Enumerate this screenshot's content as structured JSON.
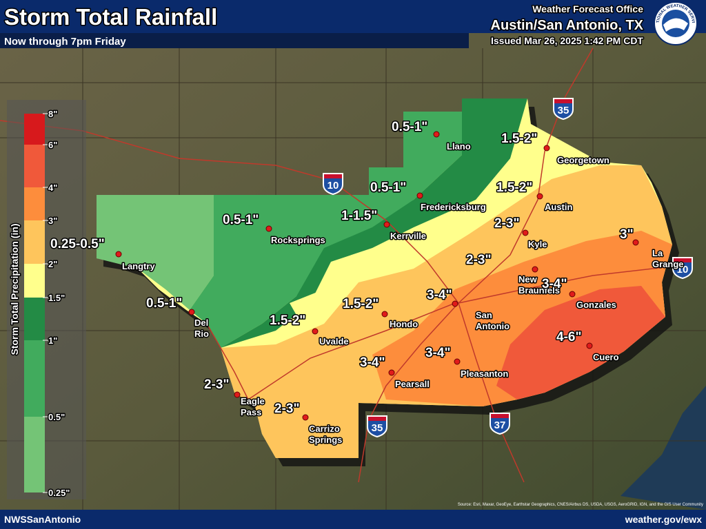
{
  "header": {
    "title": "Storm Total Rainfall",
    "subtitle": "Now through 7pm Friday",
    "office_label": "Weather Forecast Office",
    "office": "Austin/San Antonio, TX",
    "issued": "Issued Mar 26, 2025 1:42 PM CDT",
    "logo_text": "NATIONAL WEATHER SERVICE"
  },
  "legend": {
    "title": "Storm Total Precipitation (in)",
    "ticks": [
      "8\"",
      "6\"",
      "4\"",
      "3\"",
      "2\"",
      "1.5\"",
      "1\"",
      "0.5\"",
      "0.25\""
    ],
    "colors": [
      "#d7191c",
      "#f0593a",
      "#fd8d3c",
      "#fec55c",
      "#ffff8c",
      "#238b45",
      "#41ab5d",
      "#74c476"
    ]
  },
  "amounts": [
    "0.5-1\"",
    "1.5-2\"",
    "0.5-1\"",
    "1.5-2\"",
    "1-1.5\"",
    "0.5-1\"",
    "2-3\"",
    "3\"",
    "0.25-0.5\"",
    "0.5-1\"",
    "2-3\"",
    "3-4\"",
    "3-4\"",
    "1.5-2\"",
    "1.5-2\"",
    "4-6\"",
    "3-4\"",
    "3-4\"",
    "2-3\"",
    "2-3\""
  ],
  "cities": [
    [
      "Llano"
    ],
    [
      "Georgetown"
    ],
    [
      "Fredericksburg"
    ],
    [
      "Austin"
    ],
    [
      "Kerrville"
    ],
    [
      "Rocksprings"
    ],
    [
      "Kyle"
    ],
    [
      "La",
      "Grange"
    ],
    [
      "Langtry"
    ],
    [
      "New",
      "Braunfels"
    ],
    [
      "Gonzales"
    ],
    [
      "San",
      "Antonio"
    ],
    [
      "Hondo"
    ],
    [
      "Del",
      "Rio"
    ],
    [
      "Uvalde"
    ],
    [
      "Cuero"
    ],
    [
      "Pearsall"
    ],
    [
      "Pleasanton"
    ],
    [
      "Eagle",
      "Pass"
    ],
    [
      "Carrizo",
      "Springs"
    ]
  ],
  "interstates": [
    "35",
    "10",
    "35",
    "37",
    "10"
  ],
  "footer": {
    "left": "NWSSanAntonio",
    "right": "weather.gov/ewx",
    "credit": "Source: Esri, Maxar, GeoEye, Earthstar Geographics, CNES/Airbus DS, USDA, USGS, AeroGRID, IGN, and the GIS User Community"
  }
}
